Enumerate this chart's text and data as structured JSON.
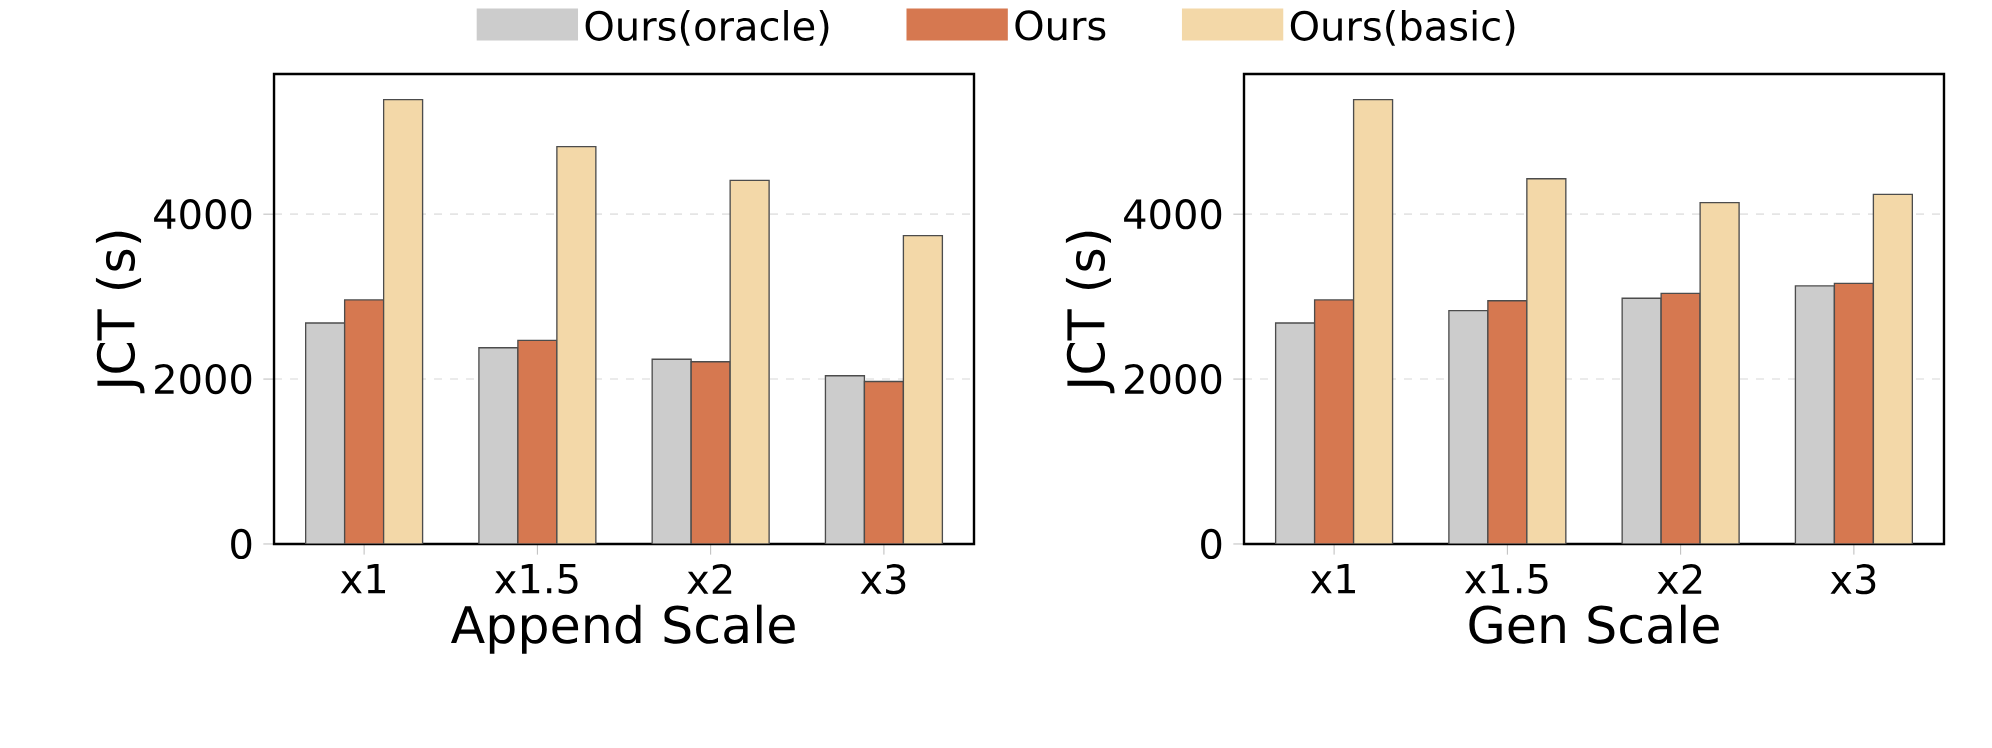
{
  "chart_data": [
    {
      "type": "bar",
      "xlabel": "Append Scale",
      "ylabel": "JCT (s)",
      "categories": [
        "x1",
        "x1.5",
        "x2",
        "x3"
      ],
      "ylim": [
        0,
        5700
      ],
      "yticks": [
        0,
        2000,
        4000
      ],
      "grid": "y",
      "legend": "top",
      "series": [
        {
          "name": "Ours(oracle)",
          "color": "#cccccc",
          "values": [
            2680,
            2380,
            2240,
            2040
          ]
        },
        {
          "name": "Ours",
          "color": "#d67850",
          "values": [
            2960,
            2470,
            2210,
            1970
          ]
        },
        {
          "name": "Ours(basic)",
          "color": "#f3d8a8",
          "values": [
            5390,
            4820,
            4410,
            3740
          ]
        }
      ]
    },
    {
      "type": "bar",
      "xlabel": "Gen Scale",
      "ylabel": "JCT (s)",
      "categories": [
        "x1",
        "x1.5",
        "x2",
        "x3"
      ],
      "ylim": [
        0,
        5700
      ],
      "yticks": [
        0,
        2000,
        4000
      ],
      "grid": "y",
      "series": [
        {
          "color": "#cccccc",
          "values": [
            2680,
            2830,
            2980,
            3130
          ]
        },
        {
          "color": "#d67850",
          "values": [
            2960,
            2950,
            3040,
            3160
          ]
        },
        {
          "color": "#f3d8a8",
          "values": [
            5390,
            4430,
            4140,
            4240
          ]
        }
      ]
    }
  ]
}
